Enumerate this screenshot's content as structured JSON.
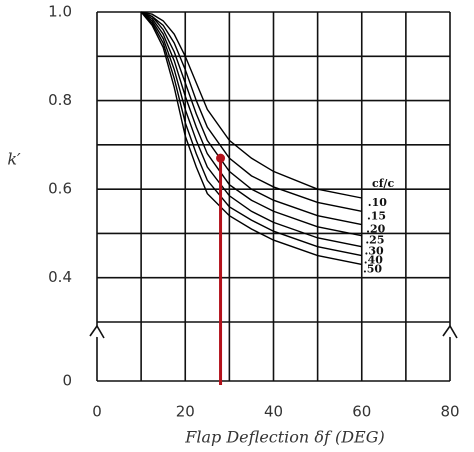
{
  "chart_data": {
    "type": "line",
    "ylabel": "k′",
    "xlabel": "Flap Deflection δf (DEG)",
    "legend_title": "cf/c",
    "x": [
      10,
      12.5,
      15,
      17.5,
      20,
      22.5,
      25,
      30,
      35,
      40,
      50,
      60
    ],
    "series": [
      {
        "name": ".10",
        "color": "#000000",
        "values": [
          1.0,
          0.995,
          0.98,
          0.95,
          0.9,
          0.84,
          0.78,
          0.71,
          0.67,
          0.64,
          0.6,
          0.58
        ]
      },
      {
        "name": ".15",
        "color": "#000000",
        "values": [
          1.0,
          0.99,
          0.97,
          0.93,
          0.87,
          0.8,
          0.74,
          0.67,
          0.63,
          0.605,
          0.57,
          0.55
        ]
      },
      {
        "name": ".20",
        "color": "#000000",
        "values": [
          1.0,
          0.99,
          0.96,
          0.91,
          0.84,
          0.77,
          0.71,
          0.64,
          0.6,
          0.575,
          0.54,
          0.52
        ]
      },
      {
        "name": ".25",
        "color": "#000000",
        "values": [
          1.0,
          0.985,
          0.95,
          0.89,
          0.81,
          0.74,
          0.68,
          0.61,
          0.575,
          0.55,
          0.515,
          0.495
        ]
      },
      {
        "name": ".30",
        "color": "#000000",
        "values": [
          1.0,
          0.98,
          0.94,
          0.87,
          0.78,
          0.71,
          0.65,
          0.585,
          0.55,
          0.525,
          0.49,
          0.47
        ]
      },
      {
        "name": ".40",
        "color": "#000000",
        "values": [
          1.0,
          0.975,
          0.93,
          0.85,
          0.75,
          0.68,
          0.62,
          0.56,
          0.53,
          0.505,
          0.47,
          0.45
        ]
      },
      {
        "name": ".50",
        "color": "#000000",
        "values": [
          1.0,
          0.97,
          0.92,
          0.83,
          0.72,
          0.65,
          0.59,
          0.54,
          0.51,
          0.485,
          0.45,
          0.43
        ]
      }
    ],
    "marker": {
      "x": 28,
      "y": 0.67,
      "color": "#b3111a"
    },
    "xlim": [
      0,
      80
    ],
    "xticks": [
      0,
      20,
      40,
      60,
      80
    ],
    "xminor": [
      10,
      30,
      50,
      70
    ],
    "ylim": [
      0,
      1.0
    ],
    "y_break": [
      0,
      0.3
    ],
    "yticks": [
      0,
      0.4,
      0.6,
      0.8,
      {
        "value": 1.0,
        "label": "1.0"
      }
    ],
    "yminor": [
      0.3,
      0.5,
      0.7,
      0.9
    ],
    "grid": true
  }
}
